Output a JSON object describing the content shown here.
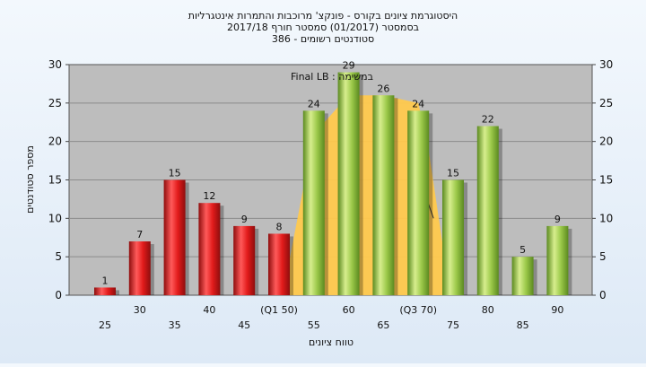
{
  "chart_data": {
    "type": "bar",
    "title_lines": [
      "היסטוגרמת ציונים בקורס - פונקצ' מרוכבות והתמרות אינטגרליות",
      "בסמסטר  (01/2017)  סמסטר חורף  2017/18",
      "386 - סטודנטים רשומים"
    ],
    "xlabel": "טווח ציונים",
    "ylabel": "מספר סטודנטים",
    "annotation": "Final LB : במשימה",
    "ylim": [
      0,
      30
    ],
    "yticks": [
      0,
      5,
      10,
      15,
      20,
      25,
      30
    ],
    "categories": [
      "25",
      "30",
      "35",
      "40",
      "45",
      "(Q1 50)",
      "55",
      "60",
      "65",
      "(Q3 70)",
      "75",
      "80",
      "85",
      "90"
    ],
    "values": [
      1,
      7,
      15,
      12,
      9,
      8,
      24,
      29,
      26,
      24,
      15,
      22,
      5,
      9
    ],
    "bar_colors": [
      "red",
      "red",
      "red",
      "red",
      "red",
      "red",
      "green",
      "green",
      "green",
      "green",
      "green",
      "green",
      "green",
      "green"
    ],
    "highlight_area_values": [
      0,
      0,
      0,
      0,
      0,
      0,
      21,
      26,
      26,
      25
    ],
    "colors": {
      "red_top": "#ff5a5a",
      "red_mid": "#e21b1b",
      "red_dark": "#8e0d0d",
      "green_light": "#d7ee8e",
      "green_mid": "#9cc94a",
      "green_dark": "#5b8a1f",
      "area": "#ffc94d",
      "plot_bg": "#bdbdbd",
      "grid": "#8c8c8c"
    },
    "grid": true
  }
}
